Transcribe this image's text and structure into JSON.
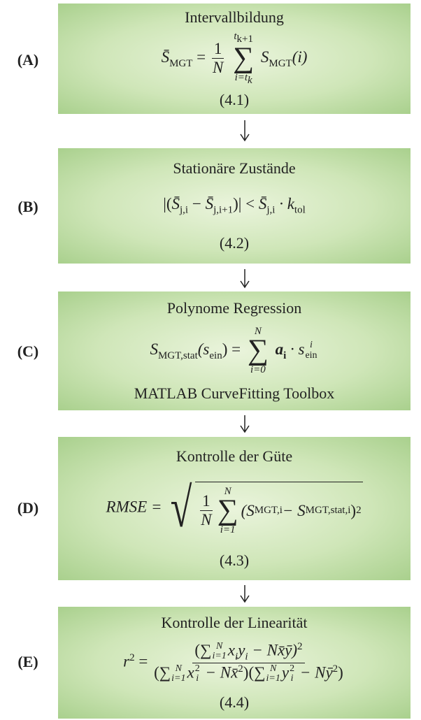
{
  "steps": [
    {
      "label": "(A)",
      "title": "Intervallbildung",
      "formula": [
        "S̄",
        "MGT",
        " = ",
        "1",
        "N",
        "∑",
        "t",
        "k+1",
        "i=t",
        "k",
        "S",
        "MGT",
        "(i)"
      ],
      "equation": "(4.1)"
    },
    {
      "label": "(B)",
      "title": "Stationäre Zustände",
      "formula": [
        "|(",
        "S̄",
        "j,i",
        " − ",
        "S̄",
        "j,i+1",
        ")| < ",
        "S̄",
        "j,i",
        " · k",
        "tol"
      ],
      "equation": "(4.2)"
    },
    {
      "label": "(C)",
      "title": "Polynome Regression",
      "formula": [
        "S",
        "MGT,stat",
        "(s",
        "ein",
        ") = ",
        "N",
        "∑",
        "i=0",
        "a",
        "i",
        " · s",
        "i",
        "ein"
      ],
      "note": "MATLAB CurveFitting Toolbox"
    },
    {
      "label": "(D)",
      "title": "Kontrolle der Güte",
      "formula": [
        "RMSE = ",
        "1",
        "N",
        "N",
        "∑",
        "i=1",
        "(S",
        "MGT,i",
        " − S",
        "MGT,stat,i",
        ")",
        "2"
      ],
      "equation": "(4.3)"
    },
    {
      "label": "(E)",
      "title": "Kontrolle der Linearität",
      "formula": [
        "r",
        "2",
        " = ",
        "(∑",
        "N",
        "i=1",
        "x",
        "i",
        "y",
        "i",
        " − Nx̄ȳ)",
        "2",
        "(∑",
        "N",
        "i=1",
        "x",
        "2",
        "i",
        " − Nx̄",
        "2",
        ")(∑",
        "N",
        "i=1",
        "y",
        "2",
        "i",
        " − Nȳ",
        "2",
        ")"
      ],
      "equation": "(4.4)"
    }
  ]
}
